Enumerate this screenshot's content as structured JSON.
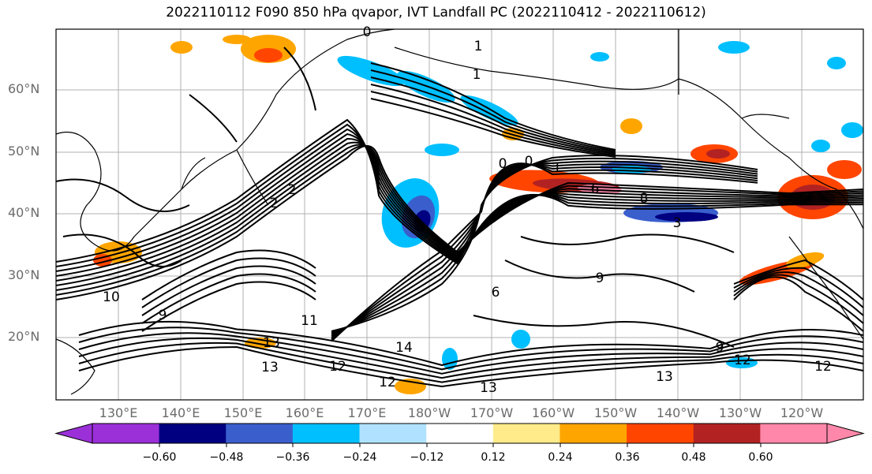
{
  "title": "2022110112 F090 850 hPa qvapor, IVT Landfall PC (2022110412 - 2022110612)",
  "map": {
    "lat_ticks": [
      "60°N",
      "50°N",
      "40°N",
      "30°N",
      "20°N"
    ],
    "lon_ticks": [
      "130°E",
      "140°E",
      "150°E",
      "160°E",
      "170°E",
      "180°W",
      "170°W",
      "160°W",
      "150°W",
      "140°W",
      "130°W",
      "120°W"
    ],
    "contour_labels": [
      "0",
      "1",
      "1",
      "2",
      "2",
      "9",
      "11",
      "13",
      "13",
      "14",
      "12",
      "12",
      "12",
      "13",
      "0",
      "0",
      "1",
      "6",
      "8",
      "3",
      "9",
      "6",
      "9",
      "12",
      "13",
      "10"
    ]
  },
  "colorbar": {
    "ticks": [
      "−0.60",
      "−0.48",
      "−0.36",
      "−0.24",
      "−0.12",
      "0.12",
      "0.24",
      "0.36",
      "0.48",
      "0.60"
    ],
    "colors": [
      "#9b30d9",
      "#000080",
      "#3a5fcd",
      "#00bfff",
      "#b0e2ff",
      "#ffffff",
      "#ffeb8a",
      "#ffa500",
      "#ff4500",
      "#b22222",
      "#ff88aa"
    ]
  }
}
